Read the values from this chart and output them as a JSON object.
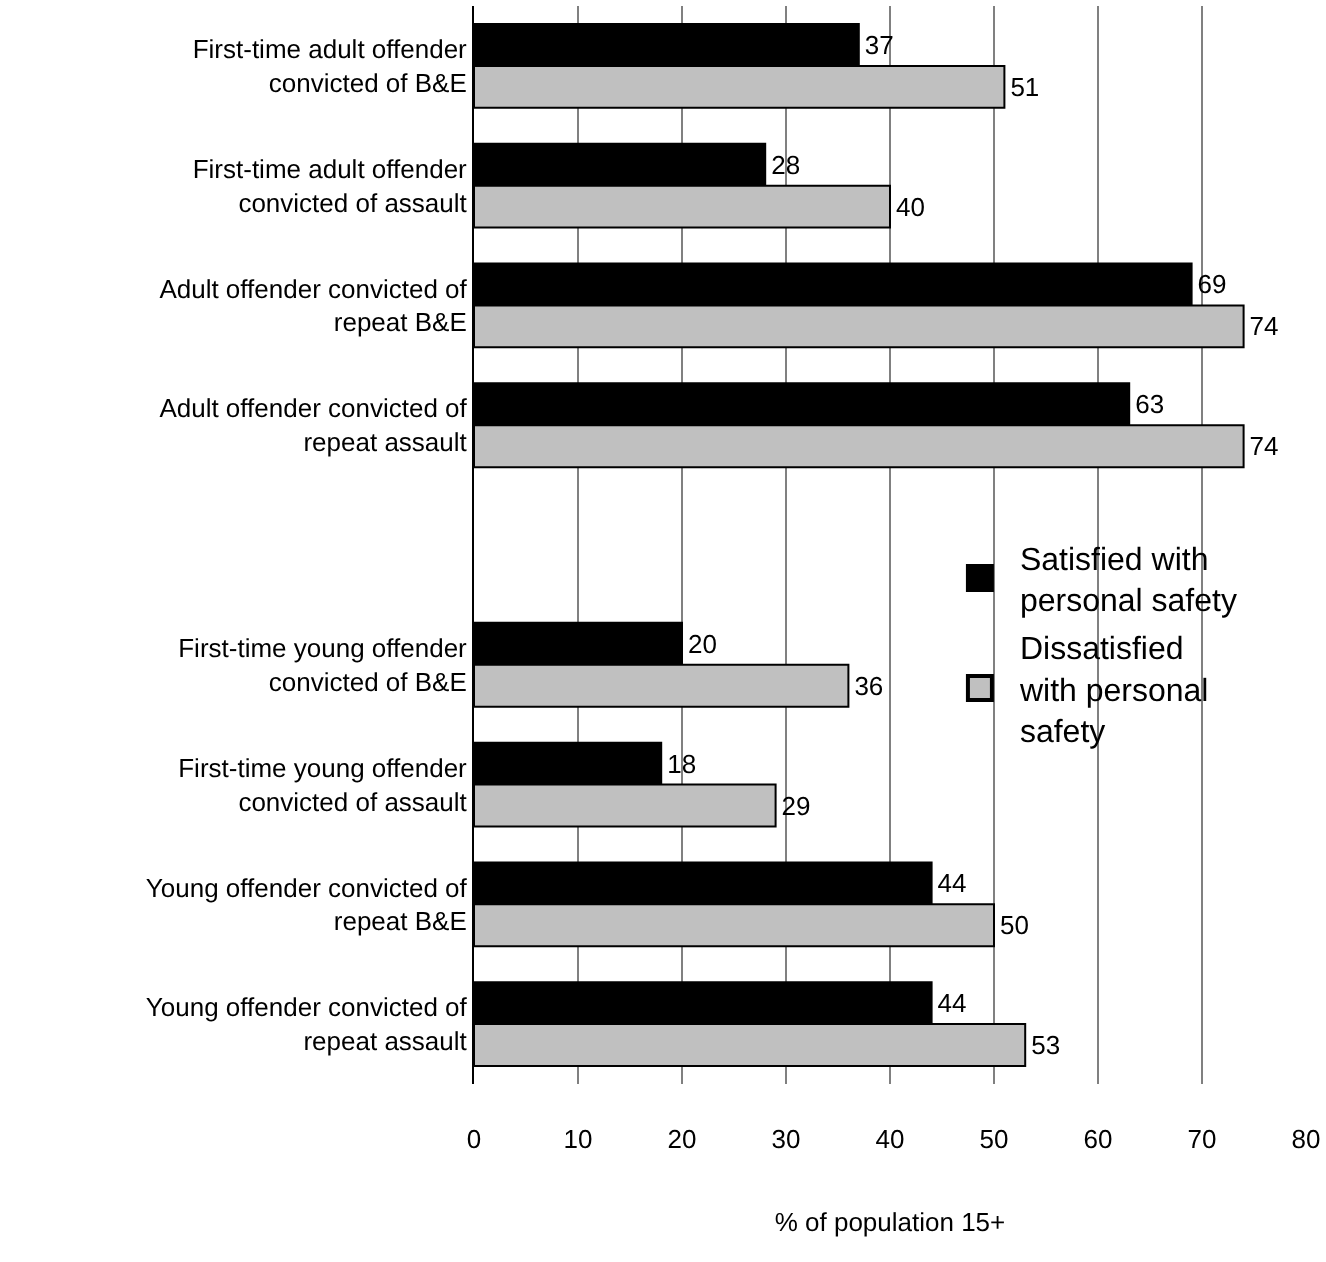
{
  "chart_data": {
    "type": "bar",
    "orientation": "horizontal",
    "xlabel": "% of population 15+",
    "categories": [
      "First-time adult offender convicted of B&E",
      "First-time adult offender convicted of assault",
      "Adult offender convicted of repeat B&E",
      "Adult offender convicted of repeat assault",
      null,
      "First-time young offender convicted of B&E",
      "First-time young offender convicted of assault",
      "Young offender convicted of repeat B&E",
      "Young offender convicted of repeat assault"
    ],
    "series": [
      {
        "name": "Satisfied with personal safety",
        "color": "#000000",
        "values": [
          37,
          28,
          69,
          63,
          null,
          20,
          18,
          44,
          44
        ]
      },
      {
        "name": "Dissatisfied with personal safety",
        "color": "#c0c0c0",
        "values": [
          51,
          40,
          74,
          74,
          null,
          36,
          29,
          50,
          53
        ]
      }
    ],
    "xlim": [
      0,
      80
    ],
    "xticks": [
      0,
      10,
      20,
      30,
      40,
      50,
      60,
      70,
      80
    ],
    "grid": "x",
    "legend": "right",
    "data_labels": true
  }
}
